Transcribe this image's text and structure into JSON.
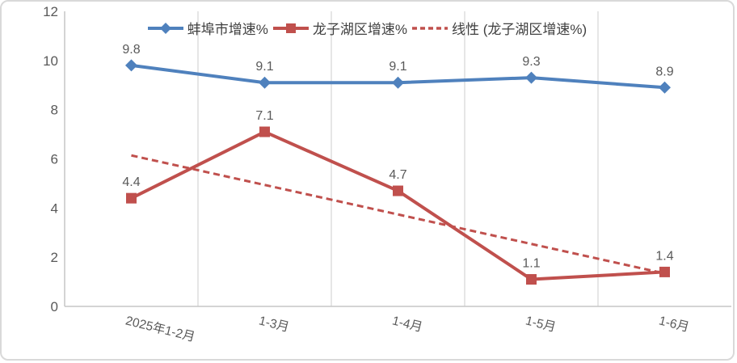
{
  "chart_data": {
    "type": "line",
    "title": "",
    "categories": [
      "2025年1-2月",
      "1-3月",
      "1-4月",
      "1-5月",
      "1-6月"
    ],
    "series": [
      {
        "name": "蚌埠市增速%",
        "values": [
          9.8,
          9.1,
          9.1,
          9.3,
          8.9
        ],
        "color": "#4F81BD",
        "marker": "diamond",
        "line": "solid"
      },
      {
        "name": "龙子湖区增速%",
        "values": [
          4.4,
          7.1,
          4.7,
          1.1,
          1.4
        ],
        "color": "#C0504D",
        "marker": "square",
        "line": "solid"
      },
      {
        "name": "线性 (龙子湖区增速%)",
        "trendline": true,
        "values": [
          6.14,
          1.34
        ],
        "x_span": [
          0,
          4
        ],
        "slope": -1.2,
        "intercept": 7.34,
        "color": "#C0504D",
        "marker": "none",
        "line": "dashed"
      }
    ],
    "ylim": [
      0,
      12
    ],
    "y_ticks": [
      0,
      2,
      4,
      6,
      8,
      10,
      12
    ],
    "xlabel": "",
    "ylabel": "",
    "legend_position": "top-center",
    "grid": "vertical-only",
    "data_labels_shown": true,
    "x_label_rotation_deg": 14,
    "colors": {
      "data_label": "#595959",
      "axis_tick_label": "#595959",
      "legend_text": "#404040",
      "gridline": "#D9D9D9",
      "axis_line": "#C6C6C6",
      "chart_border": "#D9D9D9",
      "background": "#FFFFFF"
    }
  }
}
